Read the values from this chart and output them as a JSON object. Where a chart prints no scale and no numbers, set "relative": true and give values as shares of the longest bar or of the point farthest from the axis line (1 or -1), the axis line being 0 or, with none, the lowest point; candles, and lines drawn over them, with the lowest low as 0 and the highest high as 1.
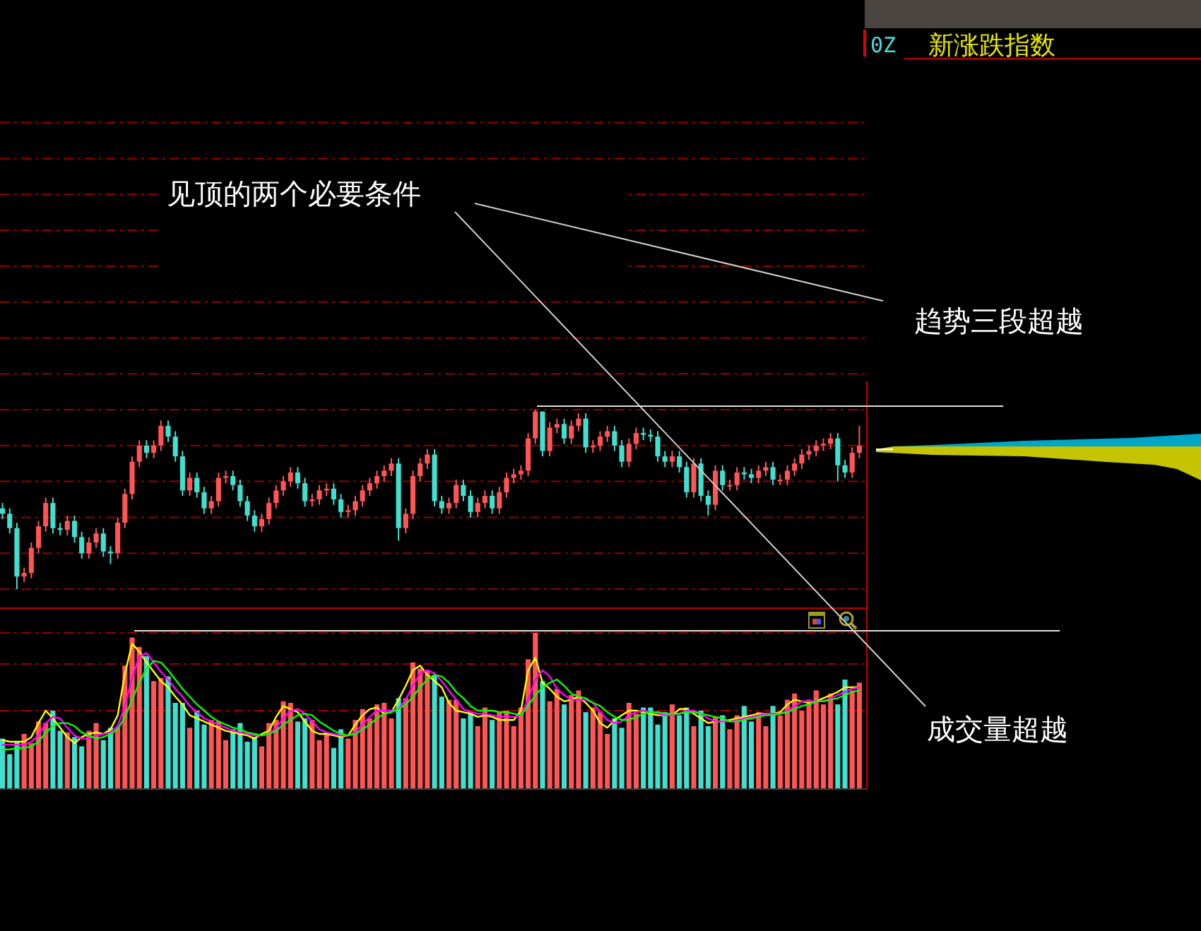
{
  "chart_data": [
    {
      "type": "candlestick",
      "relative": true,
      "annotations": [
        "0Z",
        "新涨跌指数",
        "见顶的两个必要条件",
        "趋势三段超越"
      ],
      "ref_lines": [
        {
          "axis": "y",
          "value": 0,
          "color": "#9a0000",
          "line_style": "dashed"
        },
        {
          "axis": "y",
          "value": 0.2,
          "color": "#9a0000",
          "line_style": "dashed"
        },
        {
          "axis": "y",
          "value": 0.4,
          "color": "#9a0000",
          "line_style": "dashed"
        },
        {
          "axis": "y",
          "value": 0.6,
          "color": "#9a0000",
          "line_style": "dashed"
        },
        {
          "axis": "y",
          "value": 0.8,
          "color": "#9a0000",
          "line_style": "dashed"
        },
        {
          "axis": "y",
          "value": 1,
          "color": "#9a0000",
          "line_style": "dashed"
        },
        {
          "axis": "y",
          "value": 1.2,
          "color": "#9a0000",
          "line_style": "dashed"
        },
        {
          "axis": "y",
          "value": 1.4,
          "color": "#9a0000",
          "line_style": "dashed"
        },
        {
          "axis": "y",
          "value": 1.6,
          "color": "#9a0000",
          "line_style": "dashed"
        },
        {
          "axis": "y",
          "value": 1.8,
          "color": "#9a0000",
          "line_style": "dashed"
        },
        {
          "axis": "y",
          "value": 2,
          "color": "#9a0000",
          "line_style": "dashed"
        },
        {
          "axis": "y",
          "value": 2.2,
          "color": "#9a0000",
          "line_style": "dashed"
        },
        {
          "axis": "y",
          "value": 2.4,
          "color": "#9a0000",
          "line_style": "dashed"
        },
        {
          "axis": "y",
          "value": 2.6,
          "color": "#9a0000",
          "line_style": "dashed"
        }
      ],
      "categories": [
        null,
        null,
        null,
        null,
        null,
        null,
        null,
        null,
        null,
        null,
        null,
        null,
        null,
        null,
        null,
        null,
        null,
        null,
        null,
        null,
        null,
        null,
        null,
        null,
        null,
        null,
        null,
        null,
        null,
        null,
        null,
        null,
        null,
        null,
        null,
        null,
        null,
        null,
        null,
        null,
        null,
        null,
        null,
        null,
        null,
        null,
        null,
        null,
        null,
        null,
        null,
        null,
        null,
        null,
        null,
        null,
        null,
        null,
        null,
        null,
        null,
        null,
        null,
        null,
        null,
        null,
        null,
        null,
        null,
        null,
        null,
        null,
        null,
        null,
        null,
        null,
        null,
        null,
        null,
        null,
        null,
        null,
        null,
        null,
        null,
        null,
        null,
        null,
        null,
        null,
        null,
        null,
        null,
        null,
        null,
        null,
        null,
        null,
        null,
        null,
        null,
        null,
        null,
        null,
        null,
        null,
        null,
        null,
        null,
        null,
        null,
        null,
        null,
        null,
        null,
        null,
        null,
        null,
        null,
        null
      ],
      "ohlc": [
        [
          0.45,
          0.48,
          0.39,
          0.42
        ],
        [
          0.42,
          0.45,
          0.31,
          0.34
        ],
        [
          0.34,
          0.37,
          0,
          0.07
        ],
        [
          0.07,
          0.12,
          0.04,
          0.09
        ],
        [
          0.09,
          0.26,
          0.06,
          0.23
        ],
        [
          0.23,
          0.38,
          0.2,
          0.35
        ],
        [
          0.35,
          0.51,
          0.32,
          0.48
        ],
        [
          0.48,
          0.51,
          0.31,
          0.34
        ],
        [
          0.34,
          0.37,
          0.3,
          0.33
        ],
        [
          0.33,
          0.41,
          0.3,
          0.38
        ],
        [
          0.38,
          0.41,
          0.26,
          0.29
        ],
        [
          0.29,
          0.32,
          0.17,
          0.2
        ],
        [
          0.2,
          0.29,
          0.17,
          0.26
        ],
        [
          0.26,
          0.34,
          0.23,
          0.31
        ],
        [
          0.31,
          0.34,
          0.18,
          0.21
        ],
        [
          0.21,
          0.24,
          0.14,
          0.2
        ],
        [
          0.2,
          0.4,
          0.17,
          0.37
        ],
        [
          0.37,
          0.56,
          0.34,
          0.53
        ],
        [
          0.53,
          0.74,
          0.5,
          0.71
        ],
        [
          0.71,
          0.83,
          0.68,
          0.8
        ],
        [
          0.8,
          0.83,
          0.73,
          0.76
        ],
        [
          0.76,
          0.83,
          0.73,
          0.8
        ],
        [
          0.8,
          0.94,
          0.77,
          0.91
        ],
        [
          0.91,
          0.94,
          0.82,
          0.85
        ],
        [
          0.85,
          0.88,
          0.71,
          0.74
        ],
        [
          0.74,
          0.77,
          0.52,
          0.55
        ],
        [
          0.55,
          0.65,
          0.52,
          0.62
        ],
        [
          0.62,
          0.65,
          0.51,
          0.54
        ],
        [
          0.54,
          0.57,
          0.42,
          0.45
        ],
        [
          0.45,
          0.52,
          0.42,
          0.49
        ],
        [
          0.49,
          0.65,
          0.46,
          0.62
        ],
        [
          0.62,
          0.66,
          0.59,
          0.63
        ],
        [
          0.63,
          0.66,
          0.55,
          0.58
        ],
        [
          0.58,
          0.61,
          0.46,
          0.49
        ],
        [
          0.49,
          0.52,
          0.38,
          0.41
        ],
        [
          0.41,
          0.44,
          0.32,
          0.35
        ],
        [
          0.35,
          0.42,
          0.32,
          0.39
        ],
        [
          0.39,
          0.51,
          0.36,
          0.48
        ],
        [
          0.48,
          0.58,
          0.45,
          0.55
        ],
        [
          0.55,
          0.63,
          0.52,
          0.6
        ],
        [
          0.6,
          0.68,
          0.57,
          0.65
        ],
        [
          0.65,
          0.68,
          0.56,
          0.59
        ],
        [
          0.59,
          0.62,
          0.46,
          0.49
        ],
        [
          0.49,
          0.53,
          0.46,
          0.5
        ],
        [
          0.5,
          0.58,
          0.47,
          0.55
        ],
        [
          0.55,
          0.59,
          0.52,
          0.56
        ],
        [
          0.56,
          0.59,
          0.47,
          0.5
        ],
        [
          0.5,
          0.53,
          0.4,
          0.43
        ],
        [
          0.43,
          0.47,
          0.4,
          0.44
        ],
        [
          0.44,
          0.52,
          0.41,
          0.49
        ],
        [
          0.49,
          0.58,
          0.46,
          0.55
        ],
        [
          0.55,
          0.62,
          0.52,
          0.59
        ],
        [
          0.59,
          0.66,
          0.56,
          0.63
        ],
        [
          0.63,
          0.69,
          0.6,
          0.66
        ],
        [
          0.66,
          0.73,
          0.63,
          0.7
        ],
        [
          0.7,
          0.73,
          0.27,
          0.34
        ],
        [
          0.34,
          0.45,
          0.31,
          0.42
        ],
        [
          0.42,
          0.66,
          0.39,
          0.63
        ],
        [
          0.63,
          0.73,
          0.6,
          0.7
        ],
        [
          0.7,
          0.78,
          0.67,
          0.75
        ],
        [
          0.75,
          0.78,
          0.46,
          0.49
        ],
        [
          0.49,
          0.52,
          0.42,
          0.45
        ],
        [
          0.45,
          0.51,
          0.42,
          0.48
        ],
        [
          0.48,
          0.61,
          0.45,
          0.58
        ],
        [
          0.58,
          0.61,
          0.49,
          0.52
        ],
        [
          0.52,
          0.55,
          0.4,
          0.43
        ],
        [
          0.43,
          0.51,
          0.4,
          0.48
        ],
        [
          0.48,
          0.55,
          0.45,
          0.52
        ],
        [
          0.52,
          0.55,
          0.42,
          0.45
        ],
        [
          0.45,
          0.57,
          0.42,
          0.54
        ],
        [
          0.54,
          0.65,
          0.51,
          0.62
        ],
        [
          0.62,
          0.67,
          0.59,
          0.64
        ],
        [
          0.64,
          0.69,
          0.61,
          0.66
        ],
        [
          0.66,
          0.87,
          0.63,
          0.84
        ],
        [
          0.84,
          1,
          0.81,
          0.99
        ],
        [
          0.99,
          0.99,
          0.74,
          0.77
        ],
        [
          0.77,
          0.93,
          0.74,
          0.9
        ],
        [
          0.9,
          0.95,
          0.87,
          0.92
        ],
        [
          0.92,
          0.95,
          0.81,
          0.84
        ],
        [
          0.84,
          0.94,
          0.81,
          0.91
        ],
        [
          0.91,
          0.98,
          0.88,
          0.95
        ],
        [
          0.95,
          0.98,
          0.76,
          0.79
        ],
        [
          0.79,
          0.83,
          0.76,
          0.8
        ],
        [
          0.8,
          0.88,
          0.77,
          0.85
        ],
        [
          0.85,
          0.91,
          0.82,
          0.88
        ],
        [
          0.88,
          0.91,
          0.77,
          0.8
        ],
        [
          0.8,
          0.83,
          0.68,
          0.71
        ],
        [
          0.71,
          0.84,
          0.68,
          0.81
        ],
        [
          0.81,
          0.9,
          0.78,
          0.87
        ],
        [
          0.87,
          0.9,
          0.83,
          0.86
        ],
        [
          0.86,
          0.89,
          0.82,
          0.85
        ],
        [
          0.85,
          0.88,
          0.71,
          0.74
        ],
        [
          0.74,
          0.77,
          0.68,
          0.71
        ],
        [
          0.71,
          0.77,
          0.68,
          0.74
        ],
        [
          0.74,
          0.77,
          0.65,
          0.68
        ],
        [
          0.68,
          0.71,
          0.51,
          0.54
        ],
        [
          0.54,
          0.73,
          0.51,
          0.7
        ],
        [
          0.7,
          0.73,
          0.49,
          0.52
        ],
        [
          0.52,
          0.55,
          0.41,
          0.47
        ],
        [
          0.47,
          0.69,
          0.44,
          0.66
        ],
        [
          0.66,
          0.69,
          0.55,
          0.58
        ],
        [
          0.58,
          0.61,
          0.55,
          0.58
        ],
        [
          0.58,
          0.68,
          0.55,
          0.65
        ],
        [
          0.65,
          0.68,
          0.61,
          0.64
        ],
        [
          0.64,
          0.67,
          0.59,
          0.62
        ],
        [
          0.62,
          0.69,
          0.59,
          0.66
        ],
        [
          0.66,
          0.71,
          0.63,
          0.68
        ],
        [
          0.68,
          0.71,
          0.58,
          0.61
        ],
        [
          0.61,
          0.64,
          0.58,
          0.61
        ],
        [
          0.61,
          0.69,
          0.58,
          0.66
        ],
        [
          0.66,
          0.73,
          0.63,
          0.7
        ],
        [
          0.7,
          0.78,
          0.67,
          0.75
        ],
        [
          0.75,
          0.8,
          0.72,
          0.77
        ],
        [
          0.77,
          0.83,
          0.74,
          0.8
        ],
        [
          0.8,
          0.84,
          0.77,
          0.81
        ],
        [
          0.81,
          0.87,
          0.78,
          0.84
        ],
        [
          0.84,
          0.87,
          0.6,
          0.69
        ],
        [
          0.69,
          0.72,
          0.62,
          0.65
        ],
        [
          0.65,
          0.79,
          0.62,
          0.76
        ],
        [
          0.76,
          0.91,
          0.73,
          0.8
        ]
      ],
      "colors": [
        "#40e0d0",
        "#40e0d0",
        "#40e0d0",
        "#ff5555",
        "#ff5555",
        "#ff5555",
        "#ff5555",
        "#40e0d0",
        "#40e0d0",
        "#ff5555",
        "#40e0d0",
        "#40e0d0",
        "#ff5555",
        "#ff5555",
        "#40e0d0",
        "#40e0d0",
        "#ff5555",
        "#ff5555",
        "#ff5555",
        "#ff5555",
        "#40e0d0",
        "#ff5555",
        "#ff5555",
        "#40e0d0",
        "#40e0d0",
        "#40e0d0",
        "#ff5555",
        "#40e0d0",
        "#40e0d0",
        "#ff5555",
        "#ff5555",
        "#ff5555",
        "#40e0d0",
        "#40e0d0",
        "#40e0d0",
        "#40e0d0",
        "#ff5555",
        "#ff5555",
        "#ff5555",
        "#ff5555",
        "#ff5555",
        "#40e0d0",
        "#40e0d0",
        "#ff5555",
        "#ff5555",
        "#ff5555",
        "#40e0d0",
        "#40e0d0",
        "#ff5555",
        "#ff5555",
        "#ff5555",
        "#ff5555",
        "#ff5555",
        "#ff5555",
        "#ff5555",
        "#40e0d0",
        "#ff5555",
        "#ff5555",
        "#ff5555",
        "#ff5555",
        "#40e0d0",
        "#40e0d0",
        "#ff5555",
        "#ff5555",
        "#40e0d0",
        "#40e0d0",
        "#ff5555",
        "#ff5555",
        "#40e0d0",
        "#ff5555",
        "#ff5555",
        "#ff5555",
        "#ff5555",
        "#ff5555",
        "#ff5555",
        "#40e0d0",
        "#ff5555",
        "#ff5555",
        "#40e0d0",
        "#ff5555",
        "#ff5555",
        "#40e0d0",
        "#ff5555",
        "#ff5555",
        "#ff5555",
        "#40e0d0",
        "#40e0d0",
        "#ff5555",
        "#ff5555",
        "#40e0d0",
        "#40e0d0",
        "#40e0d0",
        "#40e0d0",
        "#ff5555",
        "#40e0d0",
        "#40e0d0",
        "#ff5555",
        "#40e0d0",
        "#40e0d0",
        "#ff5555",
        "#40e0d0",
        "#ff5555",
        "#ff5555",
        "#40e0d0",
        "#40e0d0",
        "#ff5555",
        "#ff5555",
        "#40e0d0",
        "#ff5555",
        "#ff5555",
        "#ff5555",
        "#ff5555",
        "#ff5555",
        "#ff5555",
        "#ff5555",
        "#ff5555",
        "#40e0d0",
        "#40e0d0",
        "#ff5555",
        "#ff5555"
      ]
    },
    {
      "type": "bar",
      "relative": true,
      "annotations": [
        "成交量超越"
      ],
      "ref_lines": [
        {
          "axis": "y",
          "value": 1,
          "color": "#9a0000",
          "line_style": "dashed"
        },
        {
          "axis": "y",
          "value": 0.8,
          "color": "#9a0000",
          "line_style": "dashed"
        },
        {
          "axis": "y",
          "value": 0.5,
          "color": "#9a0000",
          "line_style": "dashed"
        }
      ],
      "categories": [
        null,
        null,
        null,
        null,
        null,
        null,
        null,
        null,
        null,
        null,
        null,
        null,
        null,
        null,
        null,
        null,
        null,
        null,
        null,
        null,
        null,
        null,
        null,
        null,
        null,
        null,
        null,
        null,
        null,
        null,
        null,
        null,
        null,
        null,
        null,
        null,
        null,
        null,
        null,
        null,
        null,
        null,
        null,
        null,
        null,
        null,
        null,
        null,
        null,
        null,
        null,
        null,
        null,
        null,
        null,
        null,
        null,
        null,
        null,
        null,
        null,
        null,
        null,
        null,
        null,
        null,
        null,
        null,
        null,
        null,
        null,
        null,
        null,
        null,
        null,
        null,
        null,
        null,
        null,
        null,
        null,
        null,
        null,
        null,
        null,
        null,
        null,
        null,
        null,
        null,
        null,
        null,
        null,
        null,
        null,
        null,
        null,
        null,
        null,
        null,
        null,
        null,
        null,
        null,
        null,
        null,
        null,
        null,
        null,
        null,
        null,
        null,
        null,
        null,
        null,
        null,
        null,
        null,
        null,
        null
      ],
      "series": [
        {
          "type": "bar",
          "values": [
            0.32,
            0.22,
            0.3,
            0.35,
            0.29,
            0.43,
            0.42,
            0.5,
            0.37,
            0.36,
            0.33,
            0.27,
            0.37,
            0.42,
            0.31,
            0.39,
            0.39,
            0.79,
            0.97,
            0.91,
            0.85,
            0.69,
            0.71,
            0.72,
            0.55,
            0.55,
            0.39,
            0.5,
            0.41,
            0.44,
            0.43,
            0.31,
            0.38,
            0.42,
            0.3,
            0.33,
            0.27,
            0.42,
            0.44,
            0.56,
            0.55,
            0.43,
            0.45,
            0.44,
            0.31,
            0.36,
            0.26,
            0.38,
            0.32,
            0.44,
            0.51,
            0.45,
            0.54,
            0.55,
            0.45,
            0.58,
            0.58,
            0.81,
            0.77,
            0.76,
            0.73,
            0.59,
            0.57,
            0.57,
            0.45,
            0.49,
            0.4,
            0.52,
            0.44,
            0.49,
            0.5,
            0.4,
            0.52,
            0.83,
            1,
            0.69,
            0.56,
            0.64,
            0.54,
            0.6,
            0.63,
            0.49,
            0.52,
            0.49,
            0.35,
            0.45,
            0.39,
            0.55,
            0.48,
            0.52,
            0.52,
            0.41,
            0.49,
            0.54,
            0.47,
            0.52,
            0.4,
            0.5,
            0.4,
            0.46,
            0.47,
            0.38,
            0.47,
            0.53,
            0.43,
            0.49,
            0.4,
            0.53,
            0.47,
            0.57,
            0.61,
            0.5,
            0.57,
            0.63,
            0.54,
            0.61,
            0.54,
            0.7,
            0.63,
            0.68
          ],
          "colors": [
            "#40e0d0",
            "#40e0d0",
            "#40e0d0",
            "#ff5555",
            "#ff5555",
            "#ff5555",
            "#ff5555",
            "#40e0d0",
            "#40e0d0",
            "#ff5555",
            "#40e0d0",
            "#40e0d0",
            "#ff5555",
            "#ff5555",
            "#40e0d0",
            "#40e0d0",
            "#ff5555",
            "#ff5555",
            "#ff5555",
            "#ff5555",
            "#40e0d0",
            "#ff5555",
            "#ff5555",
            "#40e0d0",
            "#40e0d0",
            "#40e0d0",
            "#ff5555",
            "#40e0d0",
            "#40e0d0",
            "#ff5555",
            "#ff5555",
            "#ff5555",
            "#40e0d0",
            "#40e0d0",
            "#40e0d0",
            "#40e0d0",
            "#ff5555",
            "#ff5555",
            "#ff5555",
            "#ff5555",
            "#ff5555",
            "#40e0d0",
            "#40e0d0",
            "#ff5555",
            "#ff5555",
            "#ff5555",
            "#40e0d0",
            "#40e0d0",
            "#ff5555",
            "#ff5555",
            "#ff5555",
            "#ff5555",
            "#ff5555",
            "#ff5555",
            "#ff5555",
            "#40e0d0",
            "#ff5555",
            "#ff5555",
            "#ff5555",
            "#ff5555",
            "#40e0d0",
            "#40e0d0",
            "#ff5555",
            "#ff5555",
            "#40e0d0",
            "#40e0d0",
            "#ff5555",
            "#ff5555",
            "#40e0d0",
            "#ff5555",
            "#ff5555",
            "#ff5555",
            "#ff5555",
            "#ff5555",
            "#ff5555",
            "#40e0d0",
            "#ff5555",
            "#ff5555",
            "#40e0d0",
            "#ff5555",
            "#ff5555",
            "#40e0d0",
            "#ff5555",
            "#ff5555",
            "#ff5555",
            "#40e0d0",
            "#40e0d0",
            "#ff5555",
            "#ff5555",
            "#40e0d0",
            "#40e0d0",
            "#40e0d0",
            "#40e0d0",
            "#ff5555",
            "#40e0d0",
            "#40e0d0",
            "#ff5555",
            "#40e0d0",
            "#40e0d0",
            "#ff5555",
            "#40e0d0",
            "#ff5555",
            "#ff5555",
            "#40e0d0",
            "#40e0d0",
            "#ff5555",
            "#ff5555",
            "#40e0d0",
            "#ff5555",
            "#ff5555",
            "#ff5555",
            "#ff5555",
            "#ff5555",
            "#ff5555",
            "#ff5555",
            "#ff5555",
            "#40e0d0",
            "#40e0d0",
            "#ff5555",
            "#ff5555"
          ]
        },
        {
          "type": "line",
          "color": "#ffff00",
          "values": [
            0.31,
            0.3,
            0.3,
            0.3,
            0.33,
            0.42,
            0.5,
            0.45,
            0.39,
            0.33,
            0.29,
            0.33,
            0.35,
            0.36,
            0.35,
            0.38,
            0.47,
            0.74,
            0.93,
            0.88,
            0.81,
            0.75,
            0.69,
            0.65,
            0.59,
            0.54,
            0.47,
            0.45,
            0.43,
            0.41,
            0.39,
            0.37,
            0.36,
            0.35,
            0.34,
            0.32,
            0.35,
            0.37,
            0.46,
            0.53,
            0.51,
            0.49,
            0.43,
            0.37,
            0.35,
            0.35,
            0.34,
            0.33,
            0.34,
            0.41,
            0.47,
            0.51,
            0.52,
            0.48,
            0.49,
            0.57,
            0.66,
            0.76,
            0.79,
            0.73,
            0.69,
            0.65,
            0.55,
            0.5,
            0.49,
            0.48,
            0.46,
            0.47,
            0.46,
            0.44,
            0.44,
            0.44,
            0.5,
            0.76,
            0.84,
            0.68,
            0.64,
            0.59,
            0.56,
            0.57,
            0.59,
            0.55,
            0.5,
            0.42,
            0.39,
            0.44,
            0.47,
            0.5,
            0.5,
            0.49,
            0.48,
            0.47,
            0.47,
            0.47,
            0.51,
            0.51,
            0.48,
            0.45,
            0.42,
            0.43,
            0.43,
            0.44,
            0.45,
            0.46,
            0.47,
            0.48,
            0.48,
            0.48,
            0.49,
            0.54,
            0.57,
            0.56,
            0.55,
            0.56,
            0.58,
            0.6,
            0.62,
            0.65,
            0.65,
            0.65
          ]
        },
        {
          "type": "line",
          "color": "#ff00ff",
          "values": [
            0.28,
            0.28,
            0.28,
            0.28,
            0.3,
            0.34,
            0.42,
            0.46,
            0.45,
            0.39,
            0.34,
            0.32,
            0.32,
            0.34,
            0.35,
            0.36,
            0.4,
            0.53,
            0.71,
            0.85,
            0.87,
            0.81,
            0.75,
            0.7,
            0.64,
            0.59,
            0.53,
            0.49,
            0.45,
            0.43,
            0.41,
            0.39,
            0.37,
            0.36,
            0.35,
            0.34,
            0.34,
            0.35,
            0.39,
            0.45,
            0.5,
            0.51,
            0.48,
            0.43,
            0.38,
            0.36,
            0.35,
            0.34,
            0.34,
            0.36,
            0.41,
            0.46,
            0.5,
            0.5,
            0.5,
            0.51,
            0.57,
            0.66,
            0.74,
            0.76,
            0.74,
            0.69,
            0.63,
            0.57,
            0.51,
            0.49,
            0.48,
            0.48,
            0.47,
            0.46,
            0.46,
            0.46,
            0.47,
            0.57,
            0.7,
            0.76,
            0.72,
            0.64,
            0.6,
            0.57,
            0.57,
            0.57,
            0.55,
            0.49,
            0.44,
            0.42,
            0.43,
            0.47,
            0.49,
            0.5,
            0.49,
            0.48,
            0.47,
            0.47,
            0.48,
            0.5,
            0.5,
            0.48,
            0.45,
            0.43,
            0.43,
            0.43,
            0.44,
            0.45,
            0.46,
            0.47,
            0.48,
            0.48,
            0.48,
            0.5,
            0.53,
            0.56,
            0.56,
            0.56,
            0.56,
            0.58,
            0.6,
            0.62,
            0.64,
            0.65
          ]
        },
        {
          "type": "line",
          "color": "#00ff00",
          "values": [
            0.25,
            0.25,
            0.26,
            0.26,
            0.27,
            0.3,
            0.36,
            0.4,
            0.42,
            0.42,
            0.4,
            0.36,
            0.34,
            0.32,
            0.33,
            0.35,
            0.38,
            0.46,
            0.57,
            0.68,
            0.77,
            0.82,
            0.81,
            0.76,
            0.7,
            0.64,
            0.59,
            0.54,
            0.5,
            0.46,
            0.43,
            0.41,
            0.39,
            0.38,
            0.36,
            0.35,
            0.34,
            0.35,
            0.37,
            0.41,
            0.44,
            0.47,
            0.48,
            0.47,
            0.43,
            0.4,
            0.37,
            0.35,
            0.34,
            0.35,
            0.38,
            0.41,
            0.45,
            0.48,
            0.49,
            0.51,
            0.54,
            0.59,
            0.65,
            0.7,
            0.73,
            0.72,
            0.68,
            0.62,
            0.58,
            0.53,
            0.5,
            0.5,
            0.5,
            0.49,
            0.49,
            0.48,
            0.47,
            0.53,
            0.6,
            0.65,
            0.68,
            0.7,
            0.66,
            0.61,
            0.59,
            0.58,
            0.55,
            0.53,
            0.49,
            0.46,
            0.44,
            0.44,
            0.46,
            0.48,
            0.49,
            0.49,
            0.48,
            0.48,
            0.48,
            0.49,
            0.49,
            0.48,
            0.47,
            0.46,
            0.45,
            0.43,
            0.43,
            0.44,
            0.45,
            0.46,
            0.47,
            0.47,
            0.48,
            0.49,
            0.51,
            0.53,
            0.54,
            0.56,
            0.56,
            0.57,
            0.58,
            0.6,
            0.62,
            0.63
          ]
        }
      ]
    }
  ]
}
